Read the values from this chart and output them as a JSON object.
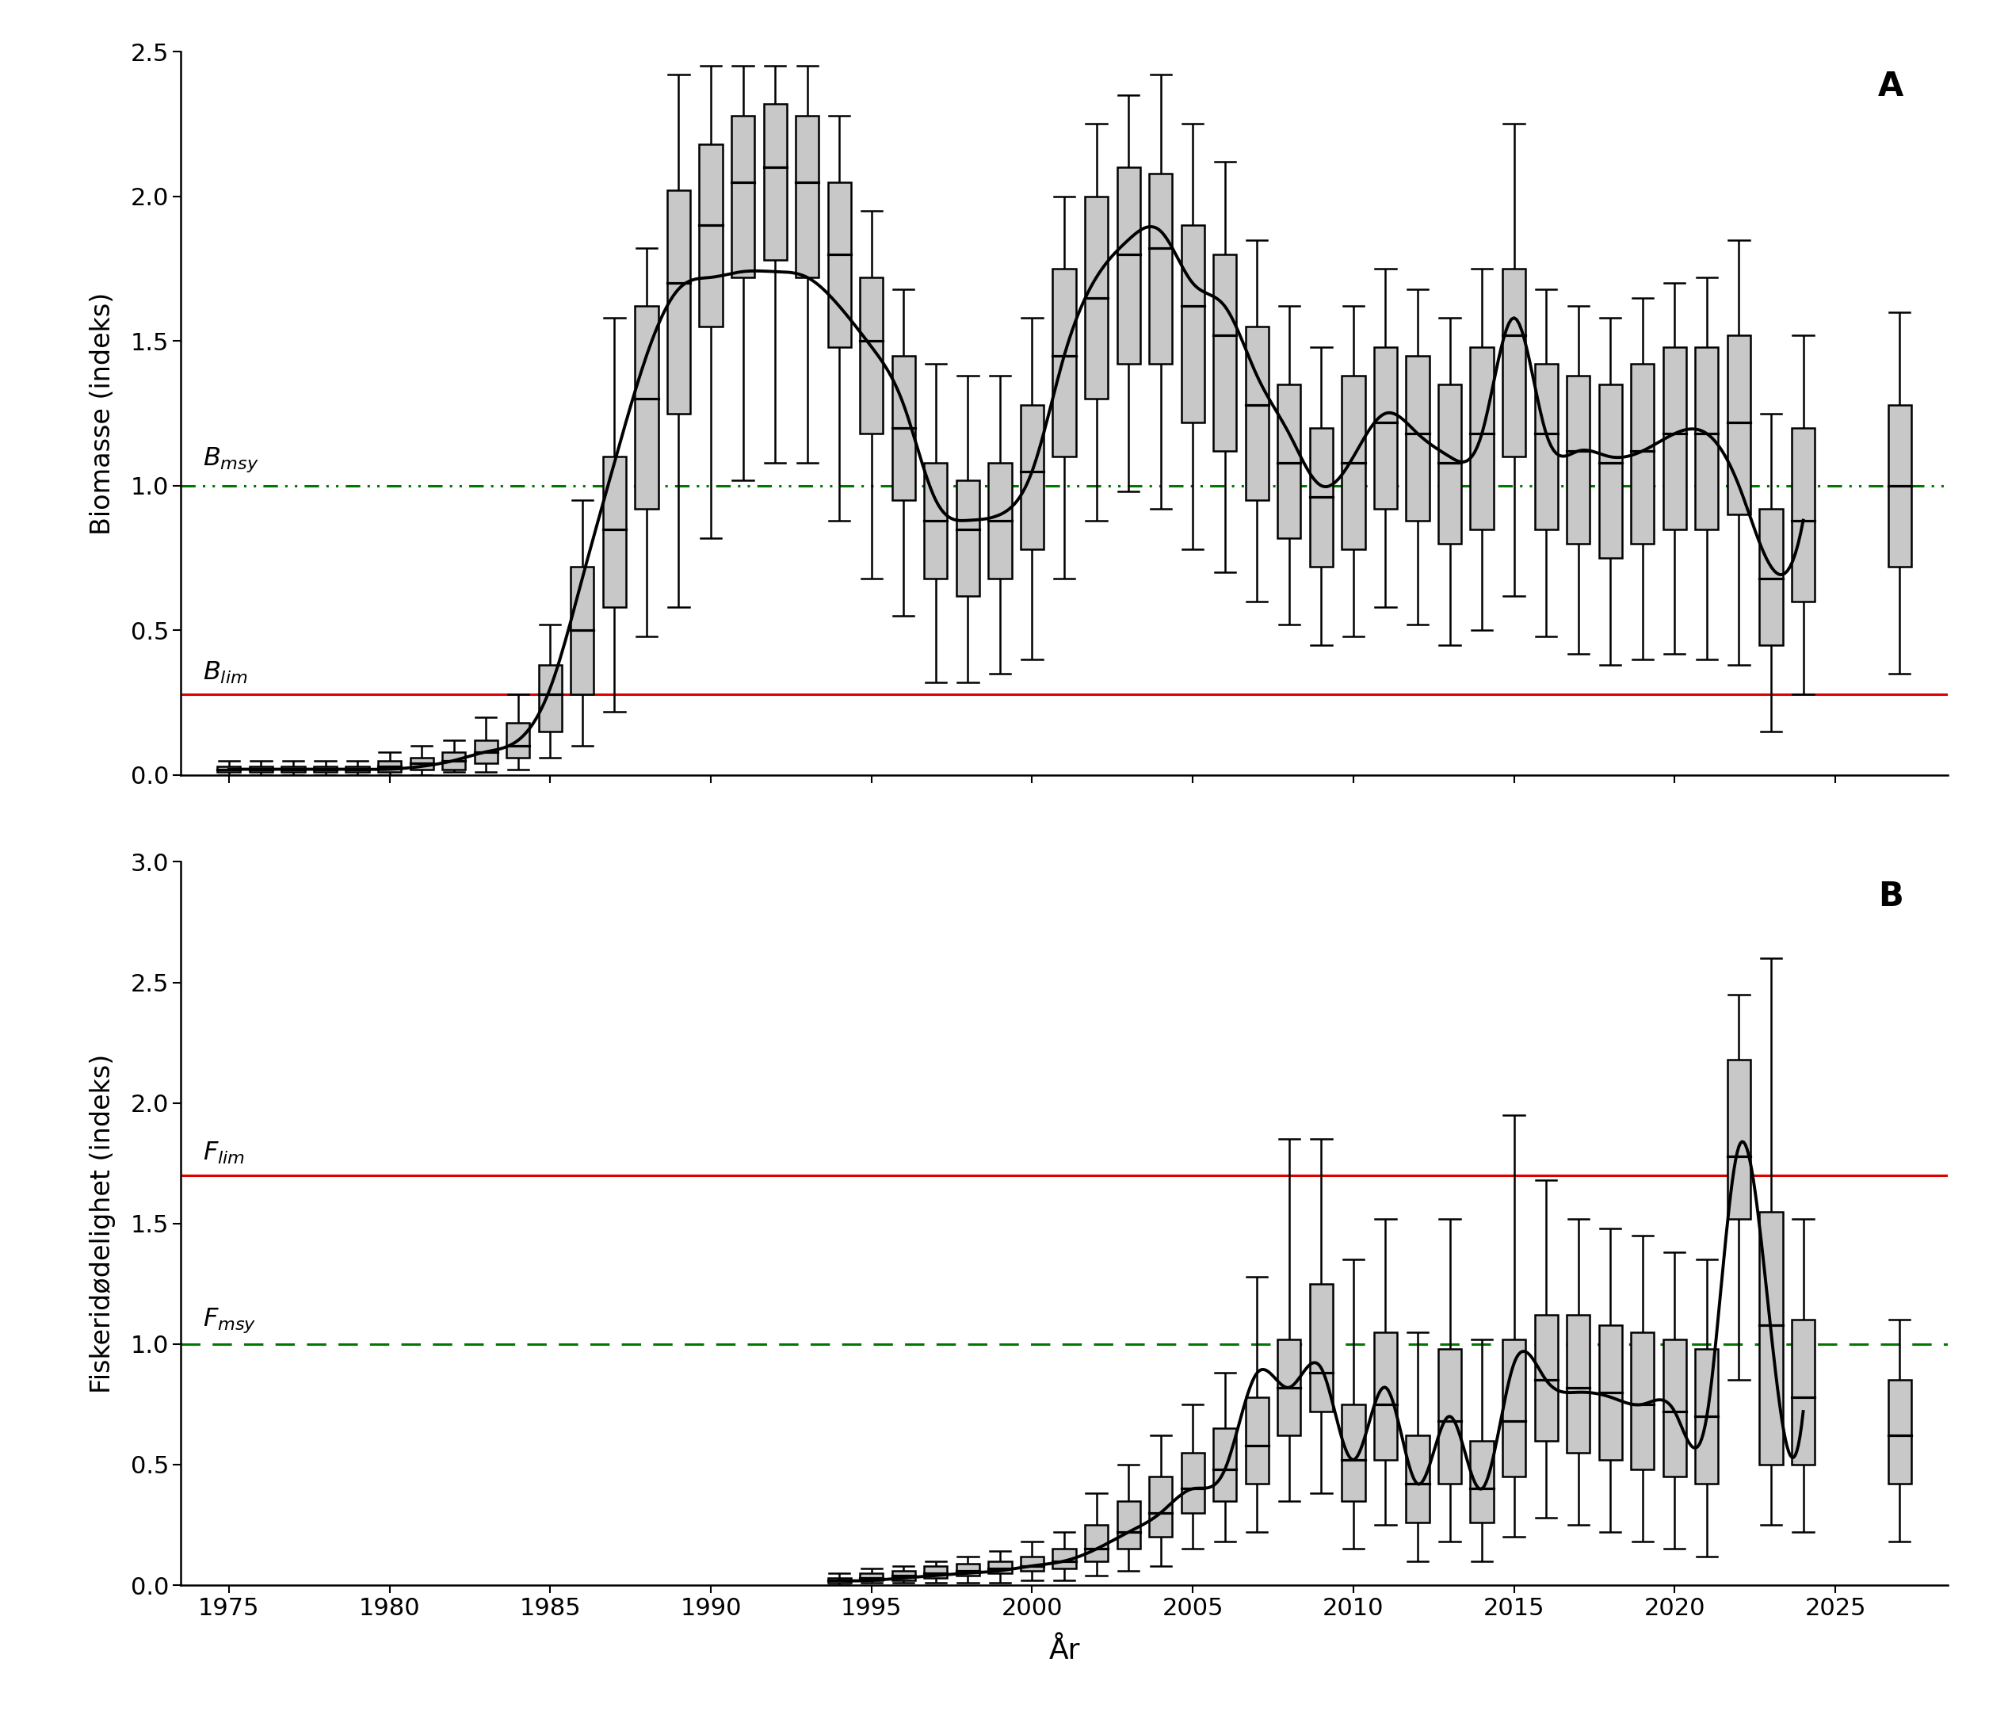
{
  "panel_A": {
    "title_label": "A",
    "ylabel": "Biomasse (indeks)",
    "ylim": [
      0.0,
      2.5
    ],
    "yticks": [
      0.0,
      0.5,
      1.0,
      1.5,
      2.0,
      2.5
    ],
    "B_msy": 1.0,
    "B_lim": 0.28,
    "box_data": {
      "years": [
        1975,
        1976,
        1977,
        1978,
        1979,
        1980,
        1981,
        1982,
        1983,
        1984,
        1985,
        1986,
        1987,
        1988,
        1989,
        1990,
        1991,
        1992,
        1993,
        1994,
        1995,
        1996,
        1997,
        1998,
        1999,
        2000,
        2001,
        2002,
        2003,
        2004,
        2005,
        2006,
        2007,
        2008,
        2009,
        2010,
        2011,
        2012,
        2013,
        2014,
        2015,
        2016,
        2017,
        2018,
        2019,
        2020,
        2021,
        2022,
        2023,
        2024,
        2027
      ],
      "medians": [
        0.02,
        0.02,
        0.02,
        0.02,
        0.02,
        0.03,
        0.04,
        0.05,
        0.08,
        0.1,
        0.28,
        0.5,
        0.85,
        1.3,
        1.7,
        1.9,
        2.05,
        2.1,
        2.05,
        1.8,
        1.5,
        1.2,
        0.88,
        0.85,
        0.88,
        1.05,
        1.45,
        1.65,
        1.8,
        1.82,
        1.62,
        1.52,
        1.28,
        1.08,
        0.96,
        1.08,
        1.22,
        1.18,
        1.08,
        1.18,
        1.52,
        1.18,
        1.12,
        1.08,
        1.12,
        1.18,
        1.18,
        1.22,
        0.68,
        0.88,
        1.0
      ],
      "q1": [
        0.01,
        0.01,
        0.01,
        0.01,
        0.01,
        0.01,
        0.02,
        0.02,
        0.04,
        0.06,
        0.15,
        0.28,
        0.58,
        0.92,
        1.25,
        1.55,
        1.72,
        1.78,
        1.72,
        1.48,
        1.18,
        0.95,
        0.68,
        0.62,
        0.68,
        0.78,
        1.1,
        1.3,
        1.42,
        1.42,
        1.22,
        1.12,
        0.95,
        0.82,
        0.72,
        0.78,
        0.92,
        0.88,
        0.8,
        0.85,
        1.1,
        0.85,
        0.8,
        0.75,
        0.8,
        0.85,
        0.85,
        0.9,
        0.45,
        0.6,
        0.72
      ],
      "q3": [
        0.03,
        0.03,
        0.03,
        0.03,
        0.03,
        0.05,
        0.06,
        0.08,
        0.12,
        0.18,
        0.38,
        0.72,
        1.1,
        1.62,
        2.02,
        2.18,
        2.28,
        2.32,
        2.28,
        2.05,
        1.72,
        1.45,
        1.08,
        1.02,
        1.08,
        1.28,
        1.75,
        2.0,
        2.1,
        2.08,
        1.9,
        1.8,
        1.55,
        1.35,
        1.2,
        1.38,
        1.48,
        1.45,
        1.35,
        1.48,
        1.75,
        1.42,
        1.38,
        1.35,
        1.42,
        1.48,
        1.48,
        1.52,
        0.92,
        1.2,
        1.28
      ],
      "whisker_low": [
        0.0,
        0.0,
        0.0,
        0.0,
        0.0,
        0.0,
        0.0,
        0.01,
        0.01,
        0.02,
        0.06,
        0.1,
        0.22,
        0.48,
        0.58,
        0.82,
        1.02,
        1.08,
        1.08,
        0.88,
        0.68,
        0.55,
        0.32,
        0.32,
        0.35,
        0.4,
        0.68,
        0.88,
        0.98,
        0.92,
        0.78,
        0.7,
        0.6,
        0.52,
        0.45,
        0.48,
        0.58,
        0.52,
        0.45,
        0.5,
        0.62,
        0.48,
        0.42,
        0.38,
        0.4,
        0.42,
        0.4,
        0.38,
        0.15,
        0.28,
        0.35
      ],
      "whisker_high": [
        0.05,
        0.05,
        0.05,
        0.05,
        0.05,
        0.08,
        0.1,
        0.12,
        0.2,
        0.28,
        0.52,
        0.95,
        1.58,
        1.82,
        2.42,
        2.45,
        2.45,
        2.45,
        2.45,
        2.28,
        1.95,
        1.68,
        1.42,
        1.38,
        1.38,
        1.58,
        2.0,
        2.25,
        2.35,
        2.42,
        2.25,
        2.12,
        1.85,
        1.62,
        1.48,
        1.62,
        1.75,
        1.68,
        1.58,
        1.75,
        2.25,
        1.68,
        1.62,
        1.58,
        1.65,
        1.7,
        1.72,
        1.85,
        1.25,
        1.52,
        1.6
      ]
    },
    "line_years": [
      1975,
      1976,
      1977,
      1978,
      1979,
      1980,
      1981,
      1982,
      1983,
      1984,
      1985,
      1986,
      1987,
      1988,
      1989,
      1990,
      1991,
      1992,
      1993,
      1994,
      1995,
      1996,
      1997,
      1998,
      1999,
      2000,
      2001,
      2002,
      2003,
      2004,
      2005,
      2006,
      2007,
      2008,
      2009,
      2010,
      2011,
      2012,
      2013,
      2014,
      2015,
      2016,
      2017,
      2018,
      2019,
      2020,
      2021,
      2022,
      2023,
      2024
    ],
    "line_values": [
      0.02,
      0.02,
      0.02,
      0.02,
      0.02,
      0.02,
      0.03,
      0.05,
      0.08,
      0.12,
      0.3,
      0.68,
      1.08,
      1.45,
      1.68,
      1.72,
      1.74,
      1.74,
      1.72,
      1.62,
      1.48,
      1.28,
      0.95,
      0.88,
      0.9,
      1.05,
      1.45,
      1.72,
      1.85,
      1.88,
      1.7,
      1.62,
      1.38,
      1.18,
      1.0,
      1.1,
      1.25,
      1.18,
      1.1,
      1.18,
      1.58,
      1.18,
      1.12,
      1.1,
      1.12,
      1.18,
      1.18,
      1.0,
      0.72,
      0.88
    ]
  },
  "panel_B": {
    "title_label": "B",
    "ylabel": "Fiskeridødelighet (indeks)",
    "ylim": [
      0.0,
      3.0
    ],
    "yticks": [
      0.0,
      0.5,
      1.0,
      1.5,
      2.0,
      2.5,
      3.0
    ],
    "F_lim": 1.7,
    "F_msy": 1.0,
    "box_data": {
      "years": [
        1994,
        1995,
        1996,
        1997,
        1998,
        1999,
        2000,
        2001,
        2002,
        2003,
        2004,
        2005,
        2006,
        2007,
        2008,
        2009,
        2010,
        2011,
        2012,
        2013,
        2014,
        2015,
        2016,
        2017,
        2018,
        2019,
        2020,
        2021,
        2022,
        2023,
        2024,
        2027
      ],
      "medians": [
        0.02,
        0.03,
        0.04,
        0.05,
        0.06,
        0.07,
        0.08,
        0.1,
        0.15,
        0.22,
        0.3,
        0.4,
        0.48,
        0.58,
        0.82,
        0.88,
        0.52,
        0.75,
        0.42,
        0.68,
        0.4,
        0.68,
        0.85,
        0.82,
        0.8,
        0.75,
        0.72,
        0.7,
        1.78,
        1.08,
        0.78,
        0.62
      ],
      "q1": [
        0.01,
        0.02,
        0.02,
        0.03,
        0.04,
        0.05,
        0.06,
        0.07,
        0.1,
        0.15,
        0.2,
        0.3,
        0.35,
        0.42,
        0.62,
        0.72,
        0.35,
        0.52,
        0.26,
        0.42,
        0.26,
        0.45,
        0.6,
        0.55,
        0.52,
        0.48,
        0.45,
        0.42,
        1.52,
        0.5,
        0.5,
        0.42
      ],
      "q3": [
        0.03,
        0.05,
        0.06,
        0.08,
        0.09,
        0.1,
        0.12,
        0.15,
        0.25,
        0.35,
        0.45,
        0.55,
        0.65,
        0.78,
        1.02,
        1.25,
        0.75,
        1.05,
        0.62,
        0.98,
        0.6,
        1.02,
        1.12,
        1.12,
        1.08,
        1.05,
        1.02,
        0.98,
        2.18,
        1.55,
        1.1,
        0.85
      ],
      "whisker_low": [
        0.0,
        0.01,
        0.01,
        0.01,
        0.01,
        0.01,
        0.02,
        0.02,
        0.04,
        0.06,
        0.08,
        0.15,
        0.18,
        0.22,
        0.35,
        0.38,
        0.15,
        0.25,
        0.1,
        0.18,
        0.1,
        0.2,
        0.28,
        0.25,
        0.22,
        0.18,
        0.15,
        0.12,
        0.85,
        0.25,
        0.22,
        0.18
      ],
      "whisker_high": [
        0.05,
        0.07,
        0.08,
        0.1,
        0.12,
        0.14,
        0.18,
        0.22,
        0.38,
        0.5,
        0.62,
        0.75,
        0.88,
        1.28,
        1.85,
        1.85,
        1.35,
        1.52,
        1.05,
        1.52,
        1.02,
        1.95,
        1.68,
        1.52,
        1.48,
        1.45,
        1.38,
        1.35,
        2.45,
        2.6,
        1.52,
        1.1
      ]
    },
    "line_years": [
      1994,
      1995,
      1996,
      1997,
      1998,
      1999,
      2000,
      2001,
      2002,
      2003,
      2004,
      2005,
      2006,
      2007,
      2008,
      2009,
      2010,
      2011,
      2012,
      2013,
      2014,
      2015,
      2016,
      2017,
      2018,
      2019,
      2020,
      2021,
      2022,
      2023,
      2024
    ],
    "line_values": [
      0.02,
      0.02,
      0.03,
      0.04,
      0.05,
      0.06,
      0.08,
      0.1,
      0.15,
      0.22,
      0.3,
      0.4,
      0.48,
      0.88,
      0.82,
      0.9,
      0.52,
      0.82,
      0.42,
      0.7,
      0.4,
      0.92,
      0.85,
      0.8,
      0.78,
      0.75,
      0.72,
      0.7,
      1.82,
      1.05,
      0.72
    ]
  },
  "xlabel": "År",
  "xlim": [
    1973.5,
    2028.5
  ],
  "xticks": [
    1975,
    1980,
    1985,
    1990,
    1995,
    2000,
    2005,
    2010,
    2015,
    2020,
    2025
  ],
  "box_color": "#c8c8c8",
  "box_edgecolor": "#000000",
  "line_color": "#000000",
  "ref_line_red": "#dd0000",
  "ref_line_green": "#007700",
  "background_color": "#ffffff"
}
